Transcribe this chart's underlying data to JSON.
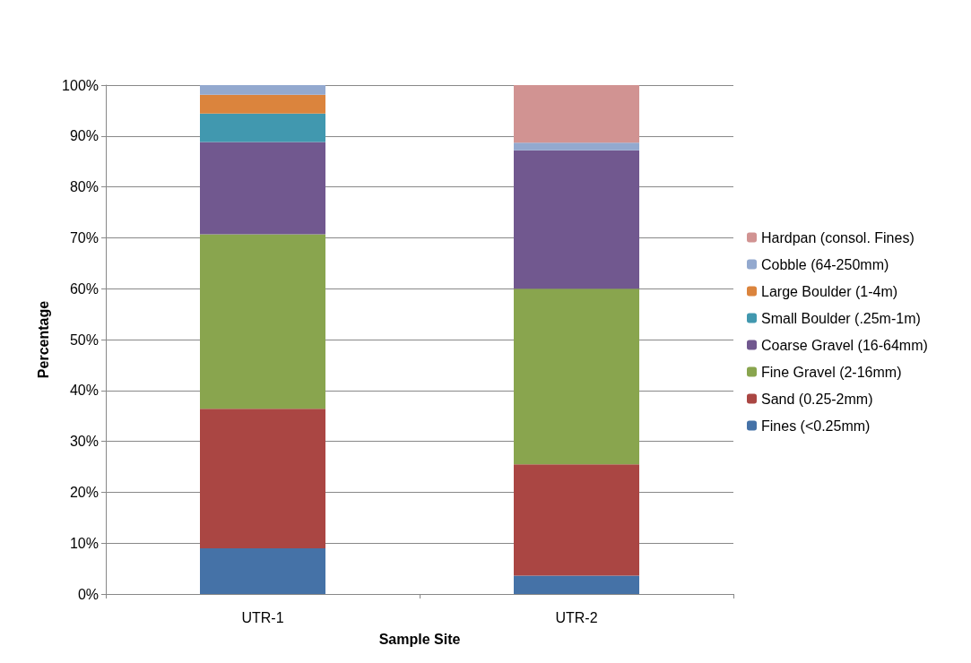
{
  "chart_data": {
    "type": "bar",
    "stacked": true,
    "xlabel": "Sample Site",
    "ylabel": "Percentage",
    "categories": [
      "UTR-1",
      "UTR-2"
    ],
    "series": [
      {
        "name": "Fines (<0.25mm)",
        "color": "#4572a7",
        "values": [
          9.0,
          3.6
        ]
      },
      {
        "name": "Sand (0.25-2mm)",
        "color": "#aa4643",
        "values": [
          27.4,
          21.9
        ]
      },
      {
        "name": "Fine Gravel (2-16mm)",
        "color": "#89a54e",
        "values": [
          34.3,
          34.5
        ]
      },
      {
        "name": "Coarse Gravel (16-64mm)",
        "color": "#71588f",
        "values": [
          18.1,
          27.2
        ]
      },
      {
        "name": "Small Boulder (.25m-1m)",
        "color": "#4198af",
        "values": [
          5.6,
          0
        ]
      },
      {
        "name": "Large Boulder (1-4m)",
        "color": "#db843d",
        "values": [
          3.7,
          0
        ]
      },
      {
        "name": "Cobble (64-250mm)",
        "color": "#93a9cf",
        "values": [
          1.9,
          1.5
        ]
      },
      {
        "name": "Hardpan (consol. Fines)",
        "color": "#d19392",
        "values": [
          0,
          11.3
        ]
      }
    ],
    "ylim": [
      0,
      100
    ],
    "yticks": [
      {
        "value": 0,
        "label": "0%"
      },
      {
        "value": 10,
        "label": "10%"
      },
      {
        "value": 20,
        "label": "20%"
      },
      {
        "value": 30,
        "label": "30%"
      },
      {
        "value": 40,
        "label": "40%"
      },
      {
        "value": 50,
        "label": "50%"
      },
      {
        "value": 60,
        "label": "60%"
      },
      {
        "value": 70,
        "label": "70%"
      },
      {
        "value": 80,
        "label": "80%"
      },
      {
        "value": 90,
        "label": "90%"
      },
      {
        "value": 100,
        "label": "100%"
      }
    ],
    "grid": "y",
    "legend": "right"
  }
}
